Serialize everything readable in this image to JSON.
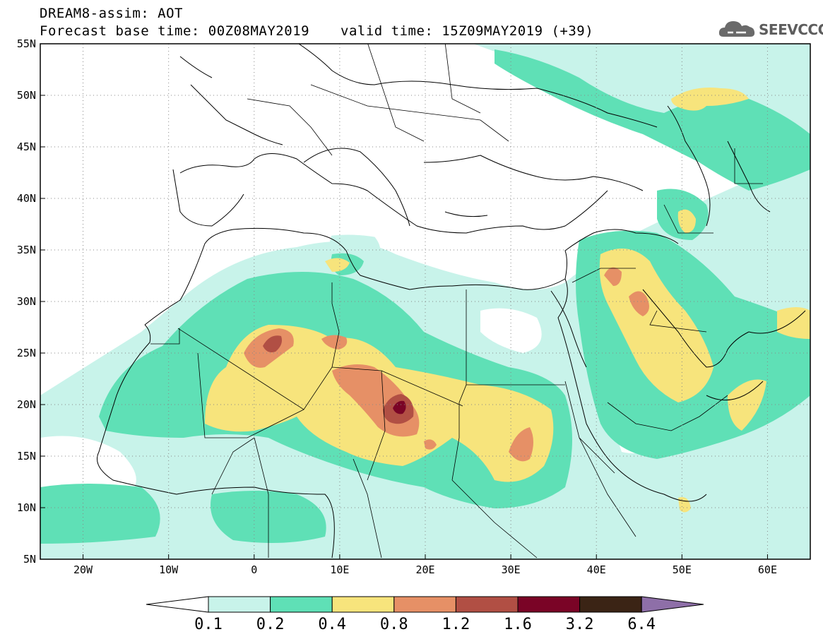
{
  "header": {
    "title": "DREAM8-assim: AOT",
    "base_time": "Forecast base time: 00Z08MAY2019",
    "valid_time": "valid time: 15Z09MAY2019 (+39)"
  },
  "logo": {
    "text": "SEEVCCC",
    "icon": "cloud-icon"
  },
  "map": {
    "lon_range": [
      -25,
      65
    ],
    "lat_range": [
      5,
      55
    ],
    "y_ticks": [
      "55N",
      "50N",
      "45N",
      "40N",
      "35N",
      "30N",
      "25N",
      "20N",
      "15N",
      "10N",
      "5N"
    ],
    "y_tick_values": [
      55,
      50,
      45,
      40,
      35,
      30,
      25,
      20,
      15,
      10,
      5
    ],
    "x_ticks": [
      "20W",
      "10W",
      "0",
      "10E",
      "20E",
      "30E",
      "40E",
      "50E",
      "60E"
    ],
    "x_tick_values": [
      -20,
      -10,
      0,
      10,
      20,
      30,
      40,
      50,
      60
    ],
    "grid": "dotted"
  },
  "colorbar": {
    "levels": [
      "0.1",
      "0.2",
      "0.4",
      "0.8",
      "1.2",
      "1.6",
      "3.2",
      "6.4"
    ],
    "colors": [
      "#c8f3ea",
      "#5fe0b6",
      "#f7e47c",
      "#e69066",
      "#b14f44",
      "#7a0426",
      "#3b2415",
      "#8e6fa8"
    ]
  }
}
